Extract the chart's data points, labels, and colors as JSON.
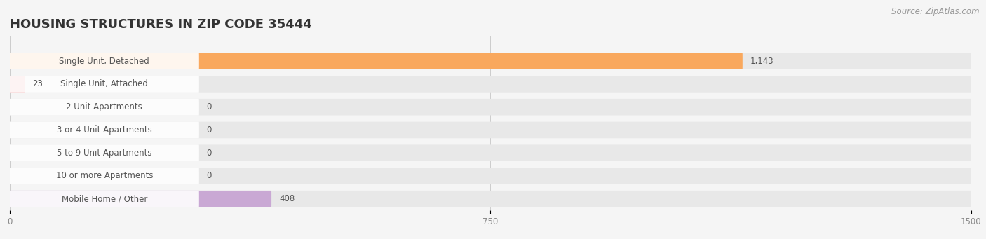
{
  "title": "HOUSING STRUCTURES IN ZIP CODE 35444",
  "source": "Source: ZipAtlas.com",
  "categories": [
    "Single Unit, Detached",
    "Single Unit, Attached",
    "2 Unit Apartments",
    "3 or 4 Unit Apartments",
    "5 to 9 Unit Apartments",
    "10 or more Apartments",
    "Mobile Home / Other"
  ],
  "values": [
    1143,
    23,
    0,
    0,
    0,
    0,
    408
  ],
  "bar_colors": [
    "#f9a85d",
    "#f19090",
    "#a8c8e8",
    "#a8c8e8",
    "#a8c8e8",
    "#a8c8e8",
    "#c9a8d4"
  ],
  "background_color": "#f5f5f5",
  "bar_bg_color": "#e8e8e8",
  "xlim_max": 1500,
  "xticks": [
    0,
    750,
    1500
  ],
  "title_fontsize": 13,
  "label_fontsize": 8.5,
  "value_fontsize": 8.5,
  "source_fontsize": 8.5
}
